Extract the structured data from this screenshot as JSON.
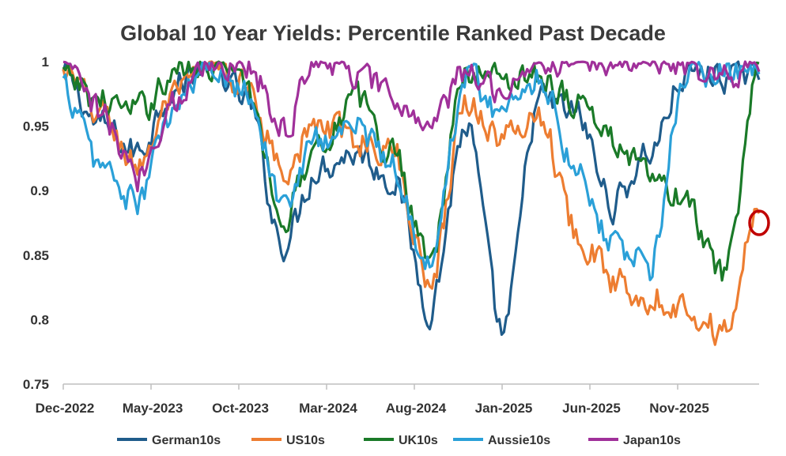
{
  "chart_data": {
    "type": "line",
    "title": "Global 10 Year Yields: Percentile Ranked Past Decade",
    "xlabel": "",
    "ylabel": "",
    "ylim": [
      0.75,
      1
    ],
    "yticks": [
      "1",
      "0.95",
      "0.9",
      "0.85",
      "0.8",
      "0.75"
    ],
    "ytick_values": [
      1,
      0.95,
      0.9,
      0.85,
      0.8,
      0.75
    ],
    "x_tick_labels": [
      "Dec-2022",
      "May-2023",
      "Oct-2023",
      "Mar-2024",
      "Aug-2024",
      "Jan-2025",
      "Jun-2025",
      "Nov-2025"
    ],
    "x": [
      "Dec-2022",
      "Feb-2023",
      "Apr-2023",
      "Jun-2023",
      "Aug-2023",
      "Oct-2023",
      "Dec-2023",
      "Feb-2024",
      "Apr-2024",
      "Jun-2024",
      "Aug-2024",
      "Oct-2024",
      "Dec-2024",
      "Feb-2025",
      "Apr-2025",
      "Jun-2025",
      "Aug-2025",
      "Oct-2025",
      "Dec-2025",
      "Feb-2026"
    ],
    "grid": false,
    "legend_position": "bottom",
    "annotation": "red circle marking latest US10s reading",
    "series": [
      {
        "name": "German10s",
        "color": "#1f5c8b",
        "values": [
          0.99,
          0.95,
          0.93,
          0.98,
          1.0,
          0.97,
          0.86,
          0.92,
          0.93,
          0.91,
          0.81,
          0.95,
          0.79,
          0.97,
          0.96,
          0.89,
          0.93,
          0.99,
          0.99,
          0.99
        ]
      },
      {
        "name": "US10s",
        "color": "#ed7d31",
        "values": [
          0.99,
          0.96,
          0.92,
          0.97,
          1.0,
          0.98,
          0.92,
          0.95,
          0.94,
          0.93,
          0.83,
          0.97,
          0.94,
          0.96,
          0.87,
          0.83,
          0.82,
          0.81,
          0.79,
          0.88
        ]
      },
      {
        "name": "UK10s",
        "color": "#1a7a28",
        "values": [
          0.99,
          0.97,
          0.96,
          0.99,
          1.0,
          0.98,
          0.88,
          0.94,
          0.97,
          0.93,
          0.85,
          0.99,
          0.99,
          0.99,
          0.97,
          0.94,
          0.91,
          0.89,
          0.83,
          0.99
        ]
      },
      {
        "name": "Aussie10s",
        "color": "#2aa0d8",
        "values": [
          0.98,
          0.92,
          0.89,
          0.96,
          1.0,
          0.98,
          0.89,
          0.94,
          0.95,
          0.92,
          0.84,
          0.99,
          0.96,
          0.99,
          0.92,
          0.86,
          0.84,
          0.99,
          0.99,
          0.99
        ]
      },
      {
        "name": "Japan10s",
        "color": "#a0309a",
        "values": [
          1.0,
          0.96,
          0.91,
          0.97,
          1.0,
          1.0,
          0.95,
          1.0,
          0.99,
          0.97,
          0.95,
          0.99,
          0.98,
          1.0,
          1.0,
          1.0,
          1.0,
          1.0,
          0.99,
          1.0
        ]
      }
    ]
  }
}
